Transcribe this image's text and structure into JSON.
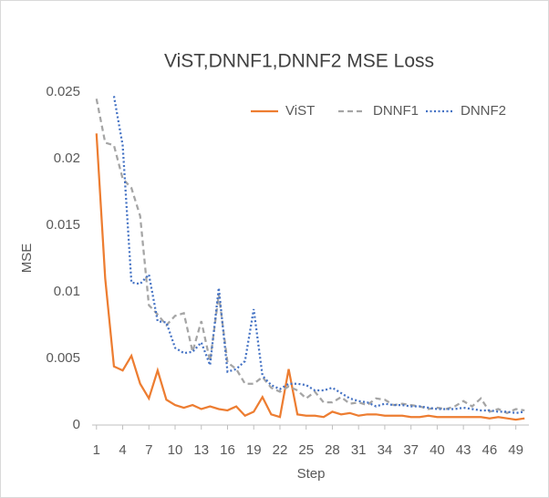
{
  "chart_data": {
    "type": "line",
    "title": "ViST,DNNF1,DNNF2 MSE Loss",
    "x_label": "Step",
    "y_label": "MSE",
    "x": [
      1,
      2,
      3,
      4,
      5,
      6,
      7,
      8,
      9,
      10,
      11,
      12,
      13,
      14,
      15,
      16,
      17,
      18,
      19,
      20,
      21,
      22,
      23,
      24,
      25,
      26,
      27,
      28,
      29,
      30,
      31,
      32,
      33,
      34,
      35,
      36,
      37,
      38,
      39,
      40,
      41,
      42,
      43,
      44,
      45,
      46,
      47,
      48,
      49,
      50
    ],
    "xlim": [
      0.5,
      50.5
    ],
    "xticks": [
      1,
      4,
      7,
      10,
      13,
      16,
      19,
      22,
      25,
      28,
      31,
      34,
      37,
      40,
      43,
      46,
      49
    ],
    "ylim": [
      0,
      0.025
    ],
    "yticks": [
      0,
      0.005,
      0.01,
      0.015,
      0.02,
      0.025
    ],
    "grid": false,
    "legend_position": "top-right",
    "series": [
      {
        "name": "ViST",
        "color": "#ed7d31",
        "style": "solid",
        "values": [
          0.0219,
          0.011,
          0.0044,
          0.0041,
          0.0052,
          0.0031,
          0.002,
          0.0041,
          0.0019,
          0.0015,
          0.0013,
          0.0015,
          0.0012,
          0.0014,
          0.0012,
          0.0011,
          0.0014,
          0.0007,
          0.001,
          0.0021,
          0.0008,
          0.0006,
          0.0042,
          0.0008,
          0.0007,
          0.0007,
          0.0006,
          0.001,
          0.0008,
          0.0009,
          0.0007,
          0.0008,
          0.0008,
          0.0007,
          0.0007,
          0.0007,
          0.0006,
          0.0006,
          0.0007,
          0.0006,
          0.0006,
          0.0006,
          0.0006,
          0.0006,
          0.0006,
          0.0005,
          0.0006,
          0.0005,
          0.0004,
          0.0005
        ]
      },
      {
        "name": "DNNF1",
        "color": "#a5a5a5",
        "style": "dashed",
        "values": [
          0.0245,
          0.0212,
          0.021,
          0.0185,
          0.0178,
          0.0157,
          0.009,
          0.0083,
          0.0075,
          0.0082,
          0.0084,
          0.0055,
          0.0078,
          0.0048,
          0.0098,
          0.0047,
          0.0042,
          0.0031,
          0.0031,
          0.0036,
          0.0028,
          0.0025,
          0.0029,
          0.0026,
          0.002,
          0.0025,
          0.0017,
          0.0017,
          0.0021,
          0.0016,
          0.0017,
          0.0015,
          0.002,
          0.0019,
          0.0015,
          0.0016,
          0.0015,
          0.0014,
          0.0012,
          0.0013,
          0.0012,
          0.0014,
          0.0018,
          0.0014,
          0.002,
          0.001,
          0.0012,
          0.0009,
          0.0012,
          0.0011
        ]
      },
      {
        "name": "DNNF2",
        "color": "#4472c4",
        "style": "dotted",
        "values": [
          null,
          null,
          0.0247,
          0.021,
          0.0107,
          0.0106,
          0.0113,
          0.0078,
          0.0077,
          0.0058,
          0.0054,
          0.0055,
          0.0062,
          0.0045,
          0.0103,
          0.004,
          0.0042,
          0.0048,
          0.0087,
          0.0037,
          0.003,
          0.0027,
          0.0031,
          0.0031,
          0.003,
          0.0026,
          0.0026,
          0.0028,
          0.0024,
          0.002,
          0.0018,
          0.0017,
          0.0014,
          0.0016,
          0.0015,
          0.0015,
          0.0014,
          0.0014,
          0.0013,
          0.0012,
          0.0012,
          0.0012,
          0.0013,
          0.0012,
          0.0011,
          0.0011,
          0.001,
          0.001,
          0.0009,
          0.001
        ]
      }
    ]
  }
}
